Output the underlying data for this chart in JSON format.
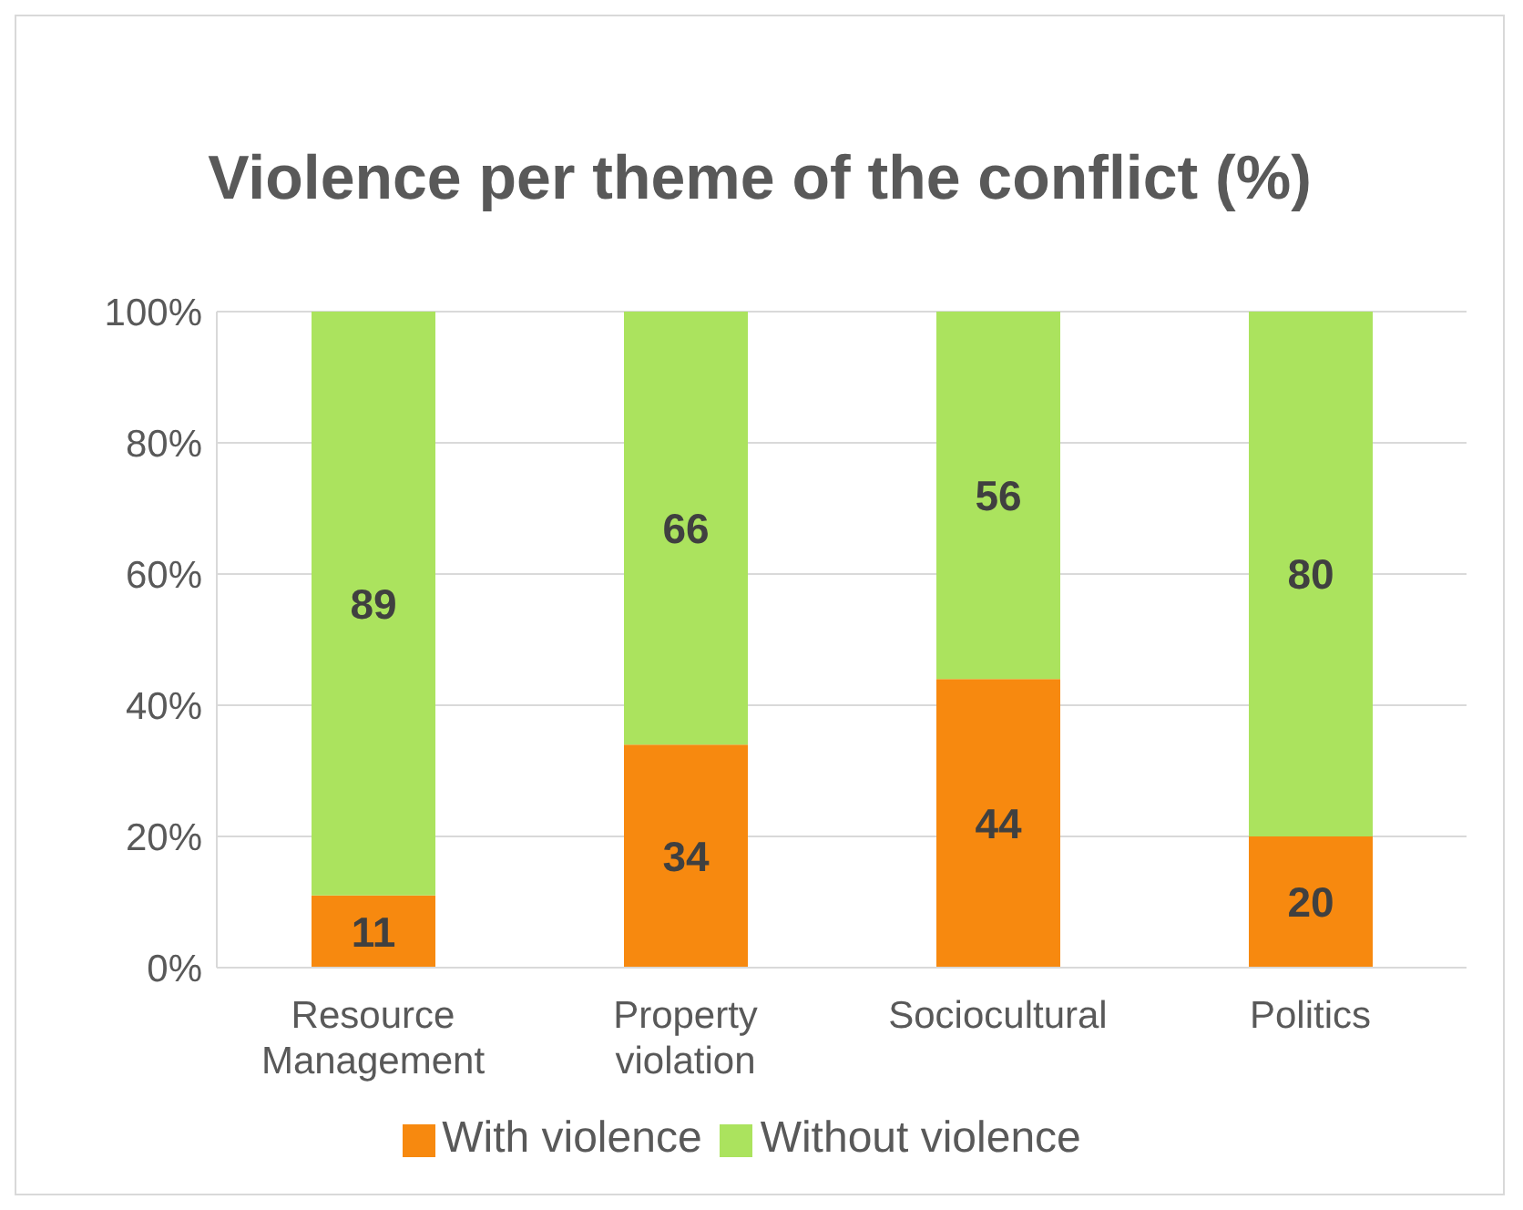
{
  "chart_data": {
    "type": "bar",
    "title": "Violence per theme of the conflict (%)",
    "stacked": true,
    "categories": [
      "Resource Management",
      "Property violation",
      "Sociocultural",
      "Politics"
    ],
    "series": [
      {
        "name": "With violence",
        "color": "#f7890f",
        "values": [
          11,
          34,
          44,
          20
        ]
      },
      {
        "name": "Without violence",
        "color": "#abe35e",
        "values": [
          89,
          66,
          56,
          80
        ]
      }
    ],
    "ylim": [
      0,
      100
    ],
    "yticks": [
      {
        "value": 0,
        "label": "0%"
      },
      {
        "value": 20,
        "label": "20%"
      },
      {
        "value": 40,
        "label": "40%"
      },
      {
        "value": 60,
        "label": "60%"
      },
      {
        "value": 80,
        "label": "80%"
      },
      {
        "value": 100,
        "label": "100%"
      }
    ],
    "grid": "y",
    "legend": "bottom",
    "data_labels": true
  }
}
